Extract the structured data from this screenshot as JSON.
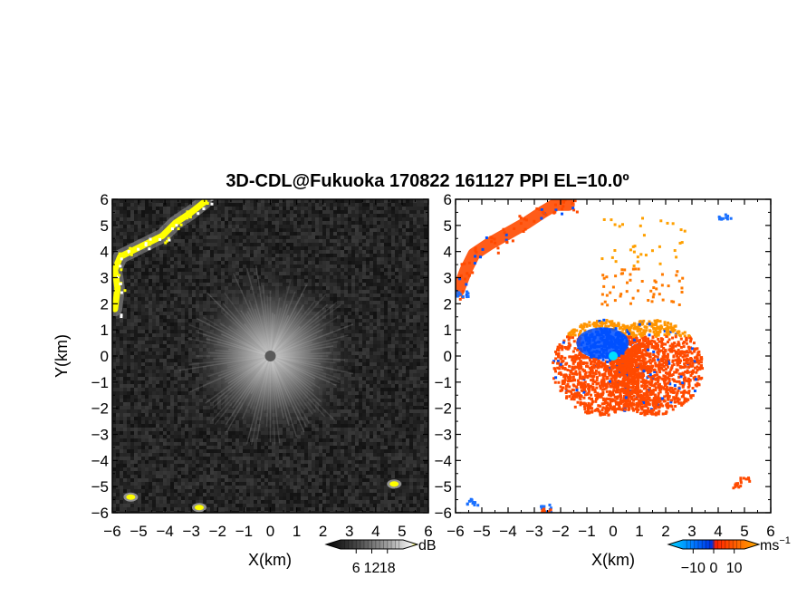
{
  "title": "3D-CDL@Fukuoka 170822 161127 PPI EL=10.0º",
  "chart_data": [
    {
      "type": "heatmap",
      "panel": "reflectivity",
      "xlabel": "X(km)",
      "ylabel": "Y(km)",
      "xlim": [
        -6,
        6
      ],
      "ylim": [
        -6,
        6
      ],
      "x_ticks": [
        -6,
        -5,
        -4,
        -3,
        -2,
        -1,
        0,
        1,
        2,
        3,
        4,
        5,
        6
      ],
      "y_ticks": [
        -6,
        -5,
        -4,
        -3,
        -2,
        -1,
        0,
        1,
        2,
        3,
        4,
        5,
        6
      ],
      "x_tick_labels": [
        "−6",
        "−5",
        "−4",
        "−3",
        "−2",
        "−1",
        "0",
        "1",
        "2",
        "3",
        "4",
        "5",
        "6"
      ],
      "y_tick_labels": [
        "−6",
        "−5",
        "−4",
        "−3",
        "−2",
        "−1",
        "0",
        "1",
        "2",
        "3",
        "4",
        "5",
        "6"
      ],
      "colorbar": {
        "unit": "dB",
        "tick_labels": [
          "6",
          "12",
          "18"
        ],
        "ticks": [
          6,
          12,
          18
        ],
        "range": [
          0,
          24
        ],
        "colors": [
          "#000000",
          "#3a3a3a",
          "#7a7a7a",
          "#bcbcbc",
          "#f2f2f2",
          "#ffff00"
        ]
      },
      "features": {
        "background_color": "#2a2a2a",
        "center_bright_color": "#c8c8c8",
        "center_dot_color": "#5a5a5a",
        "high_echo_color": "#ffff00",
        "high_echo_arc": [
          [
            -5.9,
            1.8
          ],
          [
            -5.8,
            2.6
          ],
          [
            -5.9,
            3.3
          ],
          [
            -5.7,
            3.8
          ],
          [
            -5.3,
            4.0
          ],
          [
            -4.7,
            4.3
          ],
          [
            -4.1,
            4.6
          ],
          [
            -3.6,
            5.1
          ],
          [
            -3.0,
            5.5
          ],
          [
            -2.5,
            5.9
          ]
        ],
        "high_echo_spots": [
          [
            -5.3,
            -5.4
          ],
          [
            -2.7,
            -5.8
          ],
          [
            4.7,
            -4.9
          ]
        ]
      }
    },
    {
      "type": "heatmap",
      "panel": "doppler velocity",
      "xlabel": "X(km)",
      "ylabel": "",
      "xlim": [
        -6,
        6
      ],
      "ylim": [
        -6,
        6
      ],
      "x_ticks": [
        -6,
        -5,
        -4,
        -3,
        -2,
        -1,
        0,
        1,
        2,
        3,
        4,
        5,
        6
      ],
      "x_tick_labels": [
        "−6",
        "−5",
        "−4",
        "−3",
        "−2",
        "−1",
        "0",
        "1",
        "2",
        "3",
        "4",
        "5",
        "6"
      ],
      "y_tick_labels": [
        "6",
        "5",
        "4",
        "3",
        "2",
        "1",
        "0",
        "−1",
        "−2",
        "−3",
        "−4",
        "−5",
        "−6"
      ],
      "colorbar": {
        "unit": "ms",
        "unit_sup": "−1",
        "tick_labels": [
          "−10",
          "0",
          "10"
        ],
        "ticks": [
          -10,
          0,
          10
        ],
        "range": [
          -15,
          15
        ],
        "colors": [
          "#00d8ff",
          "#0090ff",
          "#0040ff",
          "#ff2a00",
          "#ff6a00",
          "#ffa500"
        ]
      },
      "features": {
        "background_color": "#ffffff",
        "approaching_color": "#0050ff",
        "receding_color": "#ff4a00",
        "far_receding_color": "#ff9500",
        "center_dot_color": "#00e0ff",
        "cloud_center": [
          0.5,
          -0.4
        ],
        "cloud_radius_km": 2.1,
        "blue_core": [
          -0.4,
          0.5
        ],
        "arc_points": [
          [
            -5.9,
            2.5
          ],
          [
            -5.6,
            3.3
          ],
          [
            -5.3,
            3.9
          ],
          [
            -4.7,
            4.3
          ],
          [
            -4.0,
            4.7
          ],
          [
            -3.3,
            5.1
          ],
          [
            -2.7,
            5.5
          ],
          [
            -2.2,
            5.8
          ],
          [
            -1.7,
            5.8
          ]
        ],
        "blue_spots": [
          [
            -5.4,
            -5.5
          ],
          [
            -2.6,
            -5.8
          ],
          [
            4.2,
            5.4
          ],
          [
            -5.8,
            2.4
          ]
        ],
        "red_spots": [
          [
            4.6,
            -4.9
          ],
          [
            5.0,
            -4.7
          ],
          [
            -2.6,
            -5.9
          ]
        ]
      }
    }
  ]
}
